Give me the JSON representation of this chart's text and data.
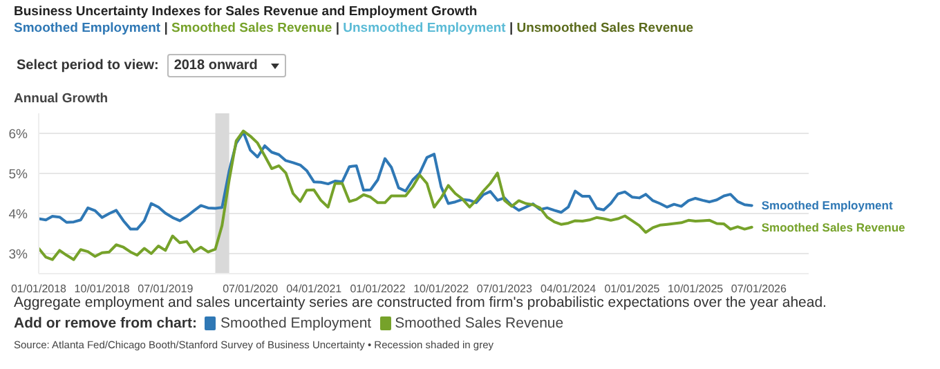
{
  "chart_data": {
    "type": "line",
    "title": "Business Uncertainty Indexes for Sales Revenue and Employment Growth",
    "subtitle": "Smoothed Employment | Smoothed Sales Revenue | Unsmoothed Employment | Unsmoothed Sales Revenue",
    "ylabel": "Annual Growth",
    "legend_title": "Add or remove from chart:",
    "annotations": [
      "Select period to view:",
      "2018 onward",
      "Aggregate employment and sales uncertainty series are constructed from firm's probabilistic expectations over the year ahead.",
      "Source: Atlanta Fed/Chicago Booth/Stanford Survey of Business Uncertainty • Recession shaded in grey"
    ],
    "x": [
      "2018-01",
      "2018-02",
      "2018-03",
      "2018-04",
      "2018-05",
      "2018-06",
      "2018-07",
      "2018-08",
      "2018-09",
      "2018-10",
      "2018-11",
      "2018-12",
      "2019-01",
      "2019-02",
      "2019-03",
      "2019-04",
      "2019-05",
      "2019-06",
      "2019-07",
      "2019-08",
      "2019-09",
      "2019-10",
      "2019-11",
      "2019-12",
      "2020-01",
      "2020-02",
      "2020-03",
      "2020-04",
      "2020-05",
      "2020-06",
      "2020-07",
      "2020-08",
      "2020-09",
      "2020-10",
      "2020-11",
      "2020-12",
      "2021-01",
      "2021-02",
      "2021-03",
      "2021-04",
      "2021-05",
      "2021-06",
      "2021-07",
      "2021-08",
      "2021-09",
      "2021-10",
      "2021-11",
      "2021-12",
      "2022-01",
      "2022-02",
      "2022-03",
      "2022-04",
      "2022-05",
      "2022-06",
      "2022-07",
      "2022-08",
      "2022-09",
      "2022-10",
      "2022-11",
      "2022-12",
      "2023-01",
      "2023-02",
      "2023-03",
      "2023-04",
      "2023-05",
      "2023-06",
      "2023-07",
      "2023-08",
      "2023-09",
      "2023-10",
      "2023-11",
      "2023-12",
      "2024-01",
      "2024-02",
      "2024-03",
      "2024-04",
      "2024-05",
      "2024-06",
      "2024-07",
      "2024-08",
      "2024-09",
      "2024-10",
      "2024-11",
      "2024-12",
      "2025-01",
      "2025-02",
      "2025-03",
      "2025-04",
      "2025-05",
      "2025-06",
      "2025-07",
      "2025-08",
      "2025-09",
      "2025-10",
      "2025-11",
      "2025-12",
      "2026-01",
      "2026-02",
      "2026-03",
      "2026-04",
      "2026-05",
      "2026-06"
    ],
    "series": [
      {
        "name": "Smoothed Employment",
        "color": "#2f78b5",
        "values": [
          3.87,
          3.84,
          3.93,
          3.91,
          3.78,
          3.79,
          3.84,
          4.14,
          4.07,
          3.9,
          4.0,
          4.08,
          3.82,
          3.61,
          3.61,
          3.82,
          4.25,
          4.16,
          4.01,
          3.9,
          3.82,
          3.93,
          4.07,
          4.2,
          4.14,
          4.13,
          4.15,
          5.07,
          5.75,
          6.03,
          5.58,
          5.41,
          5.69,
          5.53,
          5.47,
          5.32,
          5.27,
          5.21,
          5.07,
          4.79,
          4.78,
          4.74,
          4.81,
          4.79,
          5.17,
          5.19,
          4.58,
          4.59,
          4.84,
          5.37,
          5.15,
          4.64,
          4.56,
          4.84,
          5.01,
          5.4,
          5.48,
          4.67,
          4.25,
          4.29,
          4.35,
          4.33,
          4.27,
          4.47,
          4.55,
          4.33,
          4.39,
          4.2,
          4.08,
          4.16,
          4.24,
          4.1,
          4.14,
          4.08,
          4.03,
          4.16,
          4.56,
          4.43,
          4.43,
          4.13,
          4.09,
          4.25,
          4.49,
          4.54,
          4.41,
          4.39,
          4.48,
          4.32,
          4.25,
          4.16,
          4.23,
          4.18,
          4.32,
          4.38,
          4.33,
          4.29,
          4.34,
          4.44,
          4.48,
          4.3,
          4.22,
          4.2
        ]
      },
      {
        "name": "Smoothed Sales Revenue",
        "color": "#76a22a",
        "values": [
          3.13,
          2.91,
          2.85,
          3.08,
          2.96,
          2.85,
          3.1,
          3.05,
          2.93,
          3.02,
          3.04,
          3.22,
          3.16,
          3.04,
          2.96,
          3.13,
          3.0,
          3.19,
          3.08,
          3.44,
          3.27,
          3.3,
          3.05,
          3.16,
          3.04,
          3.11,
          3.7,
          4.84,
          5.81,
          6.06,
          5.93,
          5.76,
          5.44,
          5.12,
          5.19,
          5.01,
          4.5,
          4.3,
          4.58,
          4.59,
          4.33,
          4.16,
          4.75,
          4.75,
          4.3,
          4.35,
          4.47,
          4.41,
          4.27,
          4.27,
          4.44,
          4.44,
          4.44,
          4.67,
          4.96,
          4.75,
          4.16,
          4.39,
          4.7,
          4.5,
          4.36,
          4.16,
          4.33,
          4.56,
          4.75,
          5.01,
          4.33,
          4.18,
          4.32,
          4.25,
          4.22,
          4.14,
          3.91,
          3.79,
          3.73,
          3.76,
          3.82,
          3.81,
          3.84,
          3.9,
          3.87,
          3.83,
          3.87,
          3.94,
          3.82,
          3.7,
          3.53,
          3.65,
          3.71,
          3.73,
          3.75,
          3.77,
          3.83,
          3.81,
          3.82,
          3.83,
          3.75,
          3.74,
          3.61,
          3.67,
          3.61,
          3.66
        ]
      }
    ],
    "xlim": [
      "2018-01",
      "2027-02"
    ],
    "xticks": [
      {
        "value": "2018-01-01",
        "label": "01/01/2018"
      },
      {
        "value": "2018-10-01",
        "label": "10/01/2018"
      },
      {
        "value": "2019-07-01",
        "label": "07/01/2019"
      },
      {
        "value": "2020-07-01",
        "label": "07/01/2020"
      },
      {
        "value": "2021-04-01",
        "label": "04/01/2021"
      },
      {
        "value": "2022-01-01",
        "label": "01/01/2022"
      },
      {
        "value": "2022-10-01",
        "label": "10/01/2022"
      },
      {
        "value": "2023-07-01",
        "label": "07/01/2023"
      },
      {
        "value": "2024-04-01",
        "label": "04/01/2024"
      },
      {
        "value": "2025-01-01",
        "label": "01/01/2025"
      },
      {
        "value": "2025-10-01",
        "label": "10/01/2025"
      },
      {
        "value": "2026-07-01",
        "label": "07/01/2026"
      }
    ],
    "ylim": [
      2.5,
      6.5
    ],
    "yticks": [
      {
        "value": 3,
        "label": "3%"
      },
      {
        "value": 4,
        "label": "4%"
      },
      {
        "value": 5,
        "label": "5%"
      },
      {
        "value": 6,
        "label": "6%"
      }
    ],
    "bands": [
      {
        "axis": "x",
        "from": "2020-02",
        "to": "2020-04",
        "color": "#d9d9d9"
      }
    ],
    "grid": "y",
    "legend": "bottom",
    "line_style": "solid",
    "marker": "none"
  }
}
